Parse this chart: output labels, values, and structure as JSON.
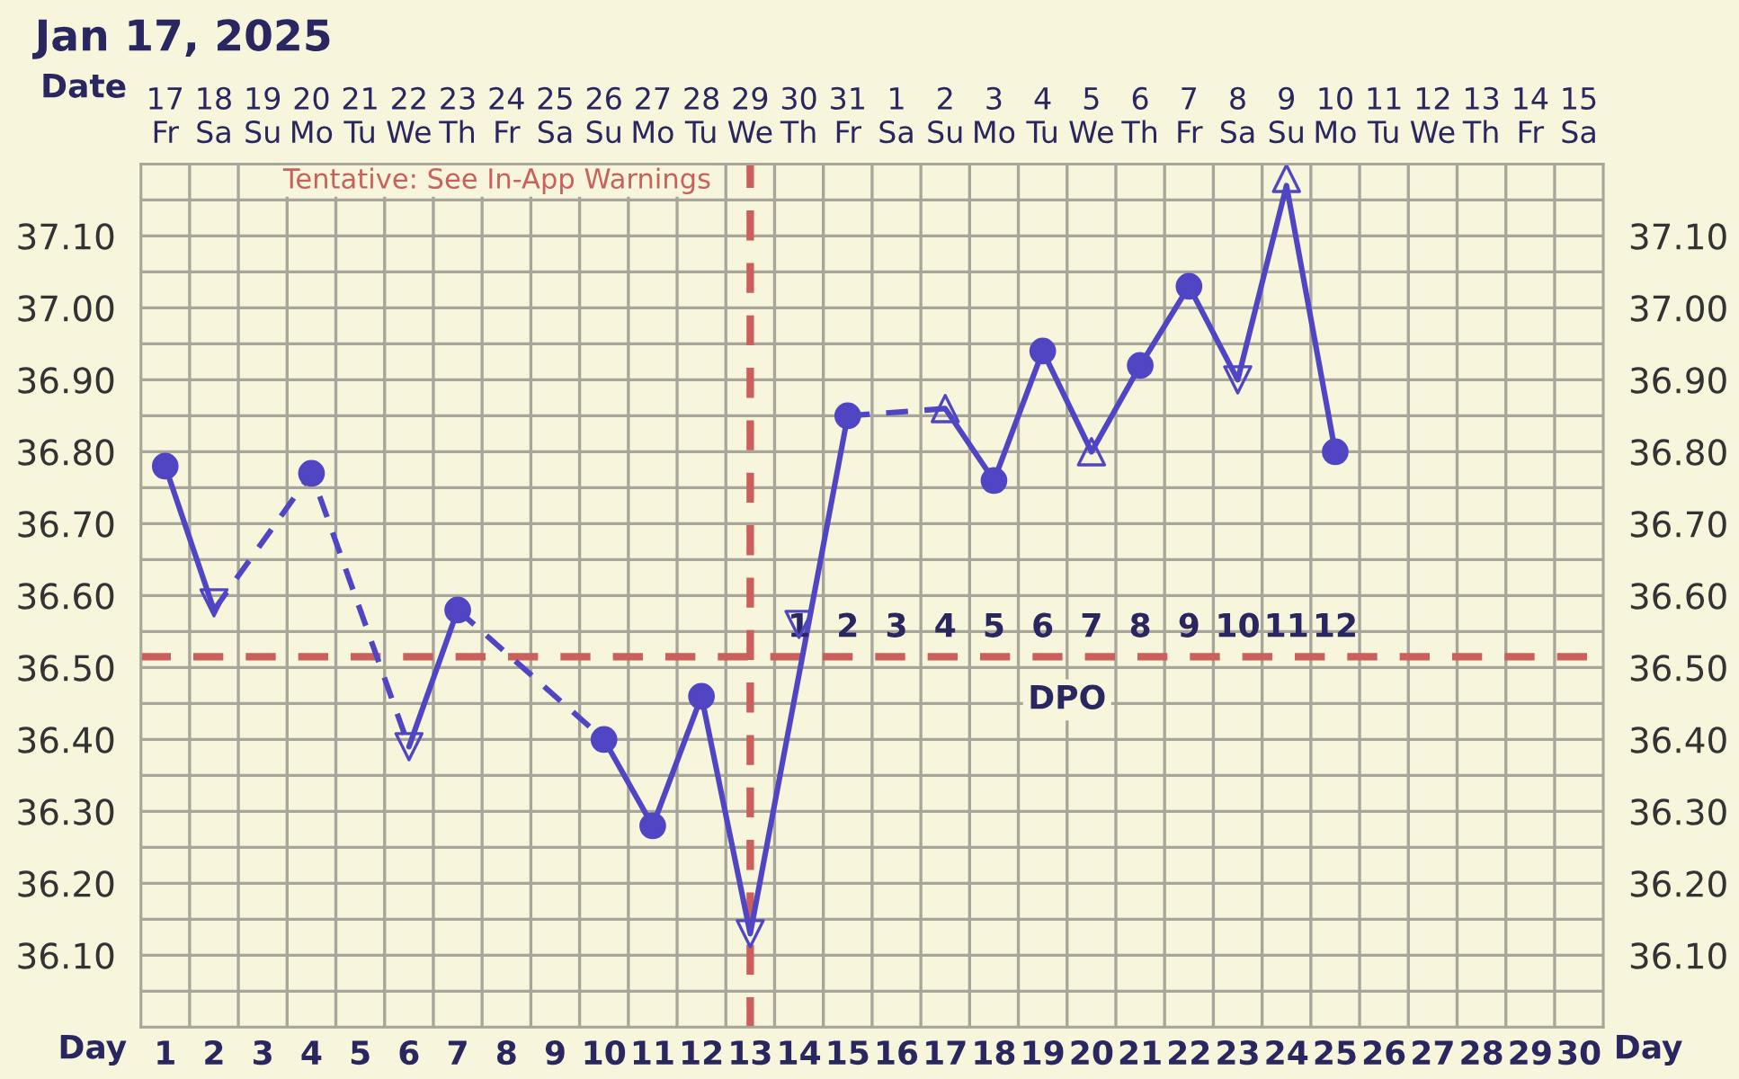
{
  "chart_data": {
    "type": "line",
    "title": "Jan 17, 2025",
    "xlabel": "Day",
    "x2label": "Date",
    "xlim": [
      0.5,
      30.5
    ],
    "xticks": [
      1,
      2,
      3,
      4,
      5,
      6,
      7,
      8,
      9,
      10,
      11,
      12,
      13,
      14,
      15,
      16,
      17,
      18,
      19,
      20,
      21,
      22,
      23,
      24,
      25,
      26,
      27,
      28,
      29,
      30
    ],
    "x2lim": [
      "2025-01-16T12:00",
      "2025-02-15T12:00"
    ],
    "x2ticks": [
      {
        "value": "2025-01-17",
        "label": "17\nFr"
      },
      {
        "value": "2025-01-18",
        "label": "18\nSa"
      },
      {
        "value": "2025-01-19",
        "label": "19\nSu"
      },
      {
        "value": "2025-01-20",
        "label": "20\nMo"
      },
      {
        "value": "2025-01-21",
        "label": "21\nTu"
      },
      {
        "value": "2025-01-22",
        "label": "22\nWe"
      },
      {
        "value": "2025-01-23",
        "label": "23\nTh"
      },
      {
        "value": "2025-01-24",
        "label": "24\nFr"
      },
      {
        "value": "2025-01-25",
        "label": "25\nSa"
      },
      {
        "value": "2025-01-26",
        "label": "26\nSu"
      },
      {
        "value": "2025-01-27",
        "label": "27\nMo"
      },
      {
        "value": "2025-01-28",
        "label": "28\nTu"
      },
      {
        "value": "2025-01-29",
        "label": "29\nWe"
      },
      {
        "value": "2025-01-30",
        "label": "30\nTh"
      },
      {
        "value": "2025-01-31",
        "label": "31\nFr"
      },
      {
        "value": "2025-02-01",
        "label": "1\nSa"
      },
      {
        "value": "2025-02-02",
        "label": "2\nSu"
      },
      {
        "value": "2025-02-03",
        "label": "3\nMo"
      },
      {
        "value": "2025-02-04",
        "label": "4\nTu"
      },
      {
        "value": "2025-02-05",
        "label": "5\nWe"
      },
      {
        "value": "2025-02-06",
        "label": "6\nTh"
      },
      {
        "value": "2025-02-07",
        "label": "7\nFr"
      },
      {
        "value": "2025-02-08",
        "label": "8\nSa"
      },
      {
        "value": "2025-02-09",
        "label": "9\nSu"
      },
      {
        "value": "2025-02-10",
        "label": "10\nMo"
      },
      {
        "value": "2025-02-11",
        "label": "11\nTu"
      },
      {
        "value": "2025-02-12",
        "label": "12\nWe"
      },
      {
        "value": "2025-02-13",
        "label": "13\nTh"
      },
      {
        "value": "2025-02-14",
        "label": "14\nFr"
      },
      {
        "value": "2025-02-15",
        "label": "15\nSa"
      }
    ],
    "ylim": [
      36.0,
      37.2
    ],
    "yticks": [
      {
        "value": 36.1,
        "label": "36.10"
      },
      {
        "value": 36.2,
        "label": "36.20"
      },
      {
        "value": 36.3,
        "label": "36.30"
      },
      {
        "value": 36.4,
        "label": "36.40"
      },
      {
        "value": 36.5,
        "label": "36.50"
      },
      {
        "value": 36.6,
        "label": "36.60"
      },
      {
        "value": 36.7,
        "label": "36.70"
      },
      {
        "value": 36.8,
        "label": "36.80"
      },
      {
        "value": 36.9,
        "label": "36.90"
      },
      {
        "value": 37.0,
        "label": "37.00"
      },
      {
        "value": 37.1,
        "label": "37.10"
      }
    ],
    "y2lim": [
      36.0,
      37.2
    ],
    "y2ticks": [
      {
        "value": 36.1,
        "label": "36.10"
      },
      {
        "value": 36.2,
        "label": "36.20"
      },
      {
        "value": 36.3,
        "label": "36.30"
      },
      {
        "value": 36.4,
        "label": "36.40"
      },
      {
        "value": 36.5,
        "label": "36.50"
      },
      {
        "value": 36.6,
        "label": "36.60"
      },
      {
        "value": 36.7,
        "label": "36.70"
      },
      {
        "value": 36.8,
        "label": "36.80"
      },
      {
        "value": 36.9,
        "label": "36.90"
      },
      {
        "value": 37.0,
        "label": "37.00"
      },
      {
        "value": 37.1,
        "label": "37.10"
      }
    ],
    "grid": true,
    "series": [
      {
        "line_style": "solid",
        "marker": "none",
        "color": "#5046c4",
        "x": [
          1,
          2
        ],
        "values": [
          36.78,
          36.58
        ]
      },
      {
        "line_style": "dashed",
        "marker": "none",
        "color": "#5046c4",
        "x": [
          2,
          4,
          6
        ],
        "values": [
          36.58,
          36.77,
          36.39
        ]
      },
      {
        "line_style": "solid",
        "marker": "none",
        "color": "#5046c4",
        "x": [
          6,
          7
        ],
        "values": [
          36.39,
          36.58
        ]
      },
      {
        "line_style": "dashed",
        "marker": "none",
        "color": "#5046c4",
        "x": [
          7,
          10
        ],
        "values": [
          36.58,
          36.4
        ]
      },
      {
        "line_style": "solid",
        "marker": "none",
        "color": "#5046c4",
        "x": [
          10,
          11,
          12,
          13,
          15
        ],
        "values": [
          36.4,
          36.28,
          36.46,
          36.13,
          36.85
        ]
      },
      {
        "line_style": "dashed",
        "marker": "none",
        "color": "#5046c4",
        "x": [
          15,
          17
        ],
        "values": [
          36.85,
          36.86
        ]
      },
      {
        "line_style": "solid",
        "marker": "none",
        "color": "#5046c4",
        "x": [
          17,
          18,
          19,
          20,
          21,
          22,
          23,
          24,
          25
        ],
        "values": [
          36.86,
          36.76,
          36.94,
          36.8,
          36.92,
          37.03,
          36.9,
          37.17,
          36.8
        ]
      },
      {
        "type": "scatter",
        "marker": "circle",
        "color": "#5046c4",
        "x": [
          1,
          4,
          7,
          10,
          11,
          12,
          15,
          18,
          19,
          21,
          22,
          25
        ],
        "values": [
          36.78,
          36.77,
          36.58,
          36.4,
          36.28,
          36.46,
          36.85,
          36.76,
          36.94,
          36.92,
          37.03,
          36.8
        ]
      },
      {
        "type": "scatter",
        "marker": "triangle_down",
        "color": "#5046c4",
        "x": [
          2,
          6,
          13,
          14,
          23
        ],
        "values": [
          36.59,
          36.39,
          36.13,
          36.56,
          36.9
        ]
      },
      {
        "type": "scatter",
        "marker": "triangle",
        "color": "#5046c4",
        "x": [
          17,
          20,
          24
        ],
        "values": [
          36.86,
          36.8,
          37.18
        ]
      }
    ],
    "ref_lines": [
      {
        "axis": "x",
        "value": 13,
        "label": "Tentative: See In-App Warnings",
        "color": "#c9605b",
        "line_style": "dashed"
      },
      {
        "axis": "y",
        "value": 36.515,
        "label": "DPO",
        "color": "#c9605b",
        "line_style": "dashed"
      }
    ],
    "annotations": [
      "1",
      "2",
      "3",
      "4",
      "5",
      "6",
      "7",
      "8",
      "9",
      "10",
      "11",
      "12"
    ]
  }
}
